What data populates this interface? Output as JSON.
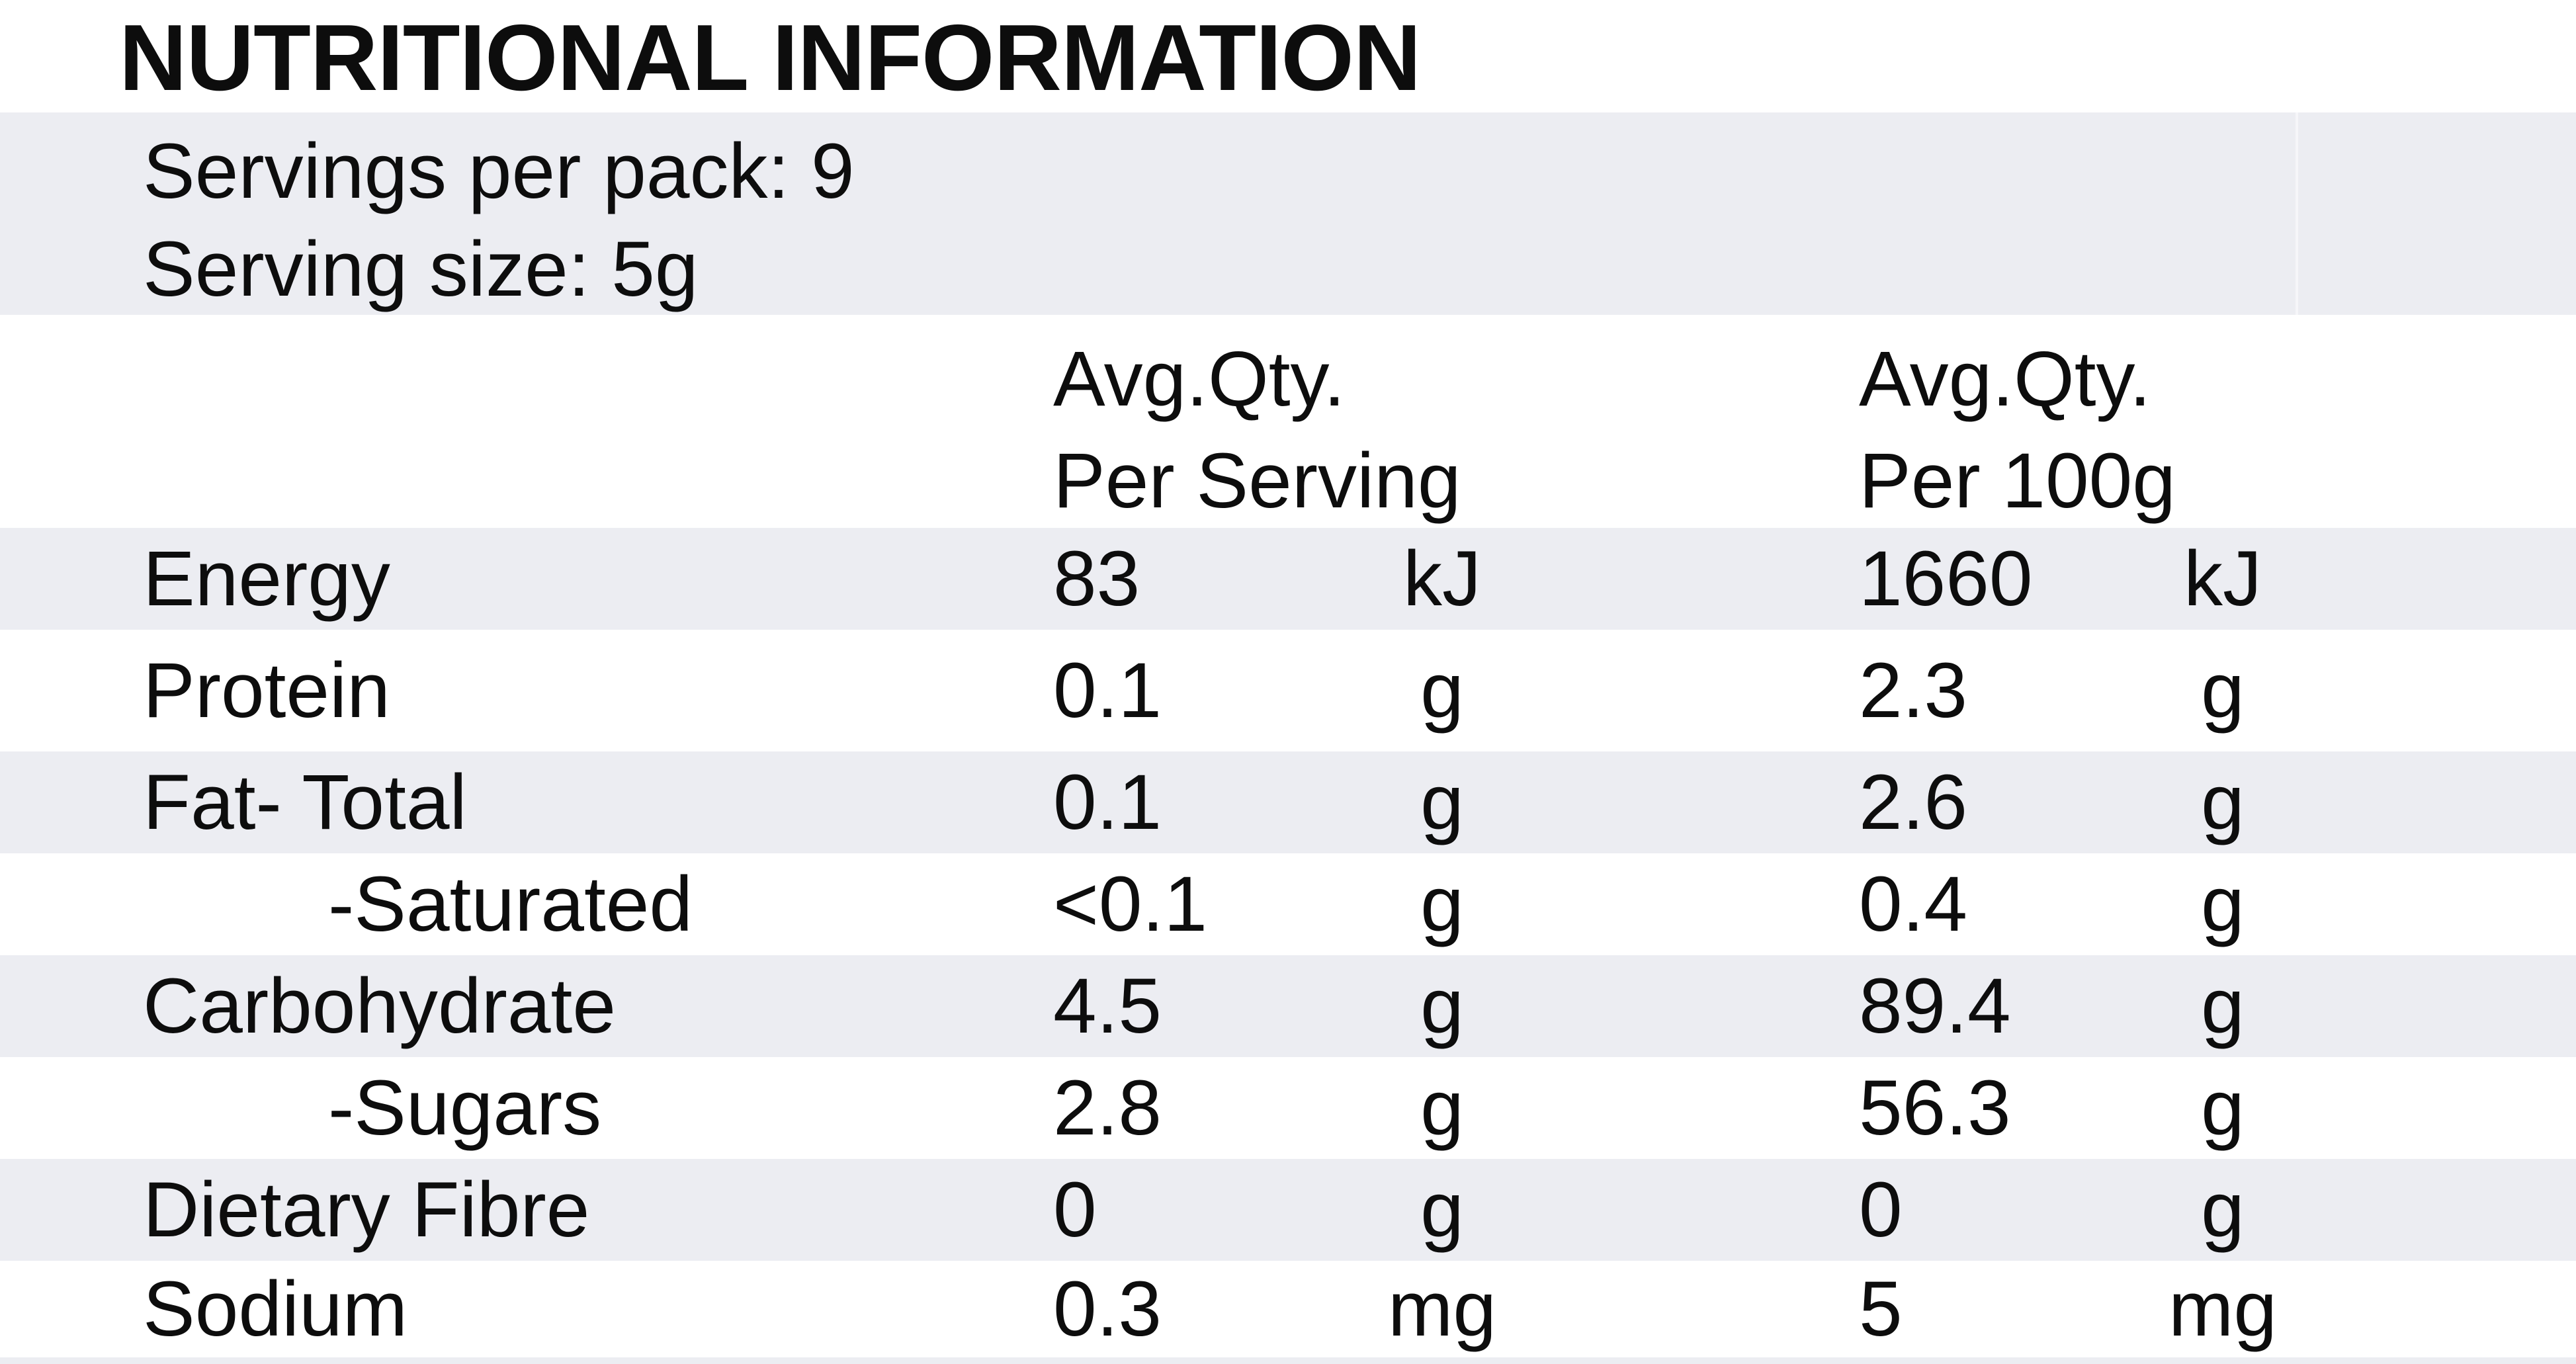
{
  "label": {
    "title": "NUTRITIONAL INFORMATION",
    "servings_per_pack": "Servings per pack: 9",
    "serving_size": "Serving size: 5g"
  },
  "columns": {
    "per_serving_line1": "Avg.Qty.",
    "per_serving_line2": "Per Serving",
    "per_100g_line1": "Avg.Qty.",
    "per_100g_line2": "Per 100g"
  },
  "rows": [
    {
      "name": "Energy",
      "serving": "83",
      "serving_unit": "kJ",
      "per100": "1660",
      "per100_unit": "kJ"
    },
    {
      "name": "Protein",
      "serving": "0.1",
      "serving_unit": "g",
      "per100": "2.3",
      "per100_unit": "g"
    },
    {
      "name": "Fat- Total",
      "serving": "0.1",
      "serving_unit": "g",
      "per100": "2.6",
      "per100_unit": "g"
    },
    {
      "name": "-Saturated",
      "serving": "<0.1",
      "serving_unit": "g",
      "per100": "0.4",
      "per100_unit": "g"
    },
    {
      "name": "Carbohydrate",
      "serving": "4.5",
      "serving_unit": "g",
      "per100": "89.4",
      "per100_unit": "g"
    },
    {
      "name": "-Sugars",
      "serving": "2.8",
      "serving_unit": "g",
      "per100": "56.3",
      "per100_unit": "g"
    },
    {
      "name": "Dietary Fibre",
      "serving": "0",
      "serving_unit": "g",
      "per100": "0",
      "per100_unit": "g"
    },
    {
      "name": "Sodium",
      "serving": "0.3",
      "serving_unit": "mg",
      "per100": "5",
      "per100_unit": "mg"
    }
  ],
  "colors": {
    "band": "#ecedf2",
    "text": "#0d0d0d",
    "background": "#ffffff"
  }
}
